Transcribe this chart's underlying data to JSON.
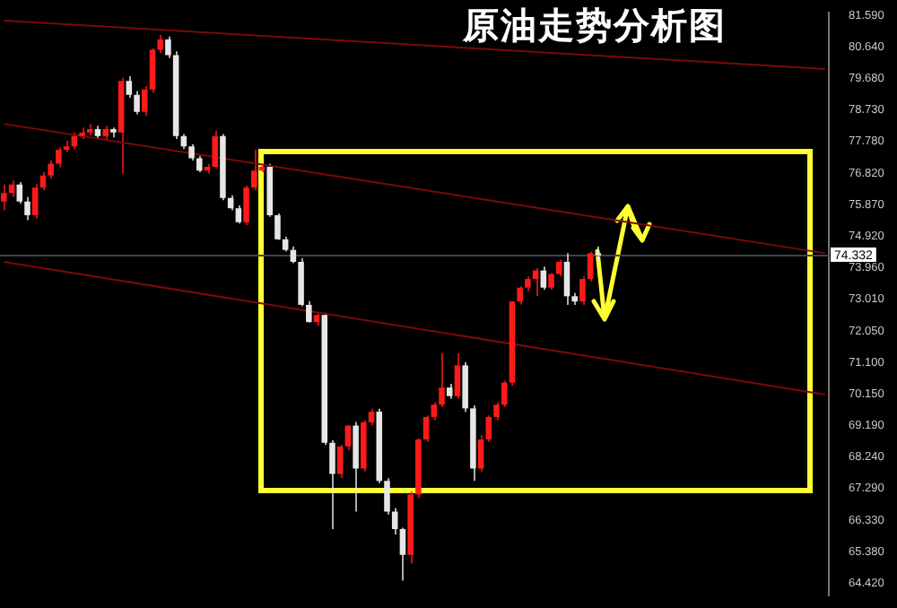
{
  "chart_data": {
    "type": "candlestick",
    "title": "原油走势分析图",
    "categories": [
      null,
      null,
      null,
      null,
      null,
      null,
      null,
      null,
      null,
      null,
      null,
      null,
      null,
      null,
      null,
      null,
      null,
      null,
      null,
      null,
      null,
      null,
      null,
      null,
      null,
      null,
      null,
      null,
      null,
      null,
      null,
      null,
      null,
      null,
      null,
      null,
      null,
      null,
      null,
      null,
      null,
      null,
      null,
      null,
      null,
      null,
      null,
      null,
      null,
      null,
      null,
      null,
      null,
      null,
      null,
      null,
      null,
      null,
      null,
      null,
      null,
      null,
      null,
      null,
      null,
      null,
      null,
      null,
      null,
      null,
      null,
      null,
      null,
      null,
      null,
      null,
      null,
      null,
      null,
      null,
      null,
      null,
      null,
      null,
      null,
      null,
      null,
      null,
      null,
      null,
      null,
      null,
      null,
      null,
      null,
      null,
      null,
      null,
      null,
      null,
      null,
      null,
      null,
      null,
      null,
      null
    ],
    "ohlc": [
      [
        75.96,
        76.48,
        75.7,
        76.22
      ],
      [
        76.22,
        76.6,
        76.1,
        76.48
      ],
      [
        76.48,
        76.55,
        75.9,
        75.96
      ],
      [
        75.96,
        76.1,
        75.4,
        75.55
      ],
      [
        75.55,
        76.5,
        75.45,
        76.38
      ],
      [
        76.38,
        76.85,
        76.3,
        76.75
      ],
      [
        76.75,
        77.2,
        76.65,
        77.11
      ],
      [
        77.11,
        77.6,
        77.0,
        77.53
      ],
      [
        77.53,
        77.8,
        77.45,
        77.63
      ],
      [
        77.63,
        78.05,
        77.55,
        77.94
      ],
      [
        77.94,
        78.2,
        77.85,
        78.05
      ],
      [
        78.05,
        78.3,
        77.95,
        78.15
      ],
      [
        78.15,
        78.25,
        77.85,
        77.94
      ],
      [
        77.94,
        78.25,
        77.8,
        78.15
      ],
      [
        78.15,
        78.2,
        77.9,
        78.05
      ],
      [
        78.05,
        79.7,
        76.8,
        79.61
      ],
      [
        79.61,
        79.75,
        79.1,
        79.19
      ],
      [
        79.19,
        79.3,
        78.6,
        78.67
      ],
      [
        78.67,
        79.45,
        78.55,
        79.35
      ],
      [
        79.35,
        80.6,
        79.25,
        80.55
      ],
      [
        80.55,
        81.0,
        80.45,
        80.86
      ],
      [
        80.86,
        80.95,
        80.3,
        80.39
      ],
      [
        80.39,
        80.5,
        77.85,
        77.94
      ],
      [
        77.94,
        78.0,
        77.55,
        77.63
      ],
      [
        77.63,
        77.7,
        77.2,
        77.27
      ],
      [
        77.27,
        77.35,
        76.85,
        76.9
      ],
      [
        76.9,
        77.1,
        76.8,
        77.01
      ],
      [
        77.01,
        78.1,
        76.95,
        77.94
      ],
      [
        77.94,
        78.0,
        76.0,
        76.07
      ],
      [
        76.07,
        76.15,
        75.7,
        75.76
      ],
      [
        75.76,
        75.85,
        75.3,
        75.34
      ],
      [
        75.34,
        76.45,
        75.25,
        76.38
      ],
      [
        76.38,
        77.53,
        76.3,
        76.9
      ],
      [
        76.9,
        77.05,
        76.85,
        77.01
      ],
      [
        77.01,
        77.1,
        75.5,
        75.55
      ],
      [
        75.55,
        75.6,
        74.8,
        74.82
      ],
      [
        74.82,
        74.9,
        74.45,
        74.5
      ],
      [
        74.5,
        74.6,
        74.1,
        74.14
      ],
      [
        74.14,
        74.25,
        72.8,
        72.84
      ],
      [
        72.84,
        72.95,
        72.3,
        72.32
      ],
      [
        72.32,
        72.6,
        72.2,
        72.53
      ],
      [
        72.53,
        72.6,
        68.6,
        68.67
      ],
      [
        68.67,
        68.75,
        66.06,
        67.73
      ],
      [
        67.73,
        68.6,
        67.6,
        68.56
      ],
      [
        68.56,
        69.2,
        68.45,
        69.19
      ],
      [
        69.19,
        69.3,
        66.59,
        67.89
      ],
      [
        67.89,
        69.35,
        67.8,
        69.29
      ],
      [
        69.29,
        69.7,
        69.2,
        69.61
      ],
      [
        69.61,
        69.7,
        67.45,
        67.52
      ],
      [
        67.52,
        67.6,
        66.5,
        66.59
      ],
      [
        66.59,
        66.7,
        65.9,
        66.06
      ],
      [
        66.06,
        66.1,
        64.5,
        65.28
      ],
      [
        65.28,
        67.2,
        65.02,
        67.11
      ],
      [
        67.11,
        68.8,
        67.0,
        68.77
      ],
      [
        68.77,
        69.5,
        68.7,
        69.45
      ],
      [
        69.45,
        69.9,
        69.35,
        69.82
      ],
      [
        69.82,
        71.38,
        69.75,
        70.34
      ],
      [
        70.34,
        70.45,
        70.0,
        70.08
      ],
      [
        70.08,
        71.38,
        70.0,
        71.01
      ],
      [
        71.01,
        71.1,
        69.6,
        69.71
      ],
      [
        69.71,
        69.8,
        67.52,
        67.89
      ],
      [
        67.89,
        68.9,
        67.8,
        68.77
      ],
      [
        68.77,
        69.5,
        68.7,
        69.45
      ],
      [
        69.45,
        69.9,
        69.35,
        69.82
      ],
      [
        69.82,
        70.55,
        69.75,
        70.49
      ],
      [
        70.49,
        72.95,
        70.4,
        72.94
      ],
      [
        72.94,
        73.4,
        72.85,
        73.36
      ],
      [
        73.36,
        73.7,
        73.25,
        73.62
      ],
      [
        73.62,
        73.95,
        73.1,
        73.88
      ],
      [
        73.88,
        74.0,
        73.3,
        73.36
      ],
      [
        73.36,
        73.8,
        73.3,
        73.77
      ],
      [
        73.77,
        74.2,
        73.7,
        74.14
      ],
      [
        74.14,
        74.4,
        72.84,
        73.1
      ],
      [
        73.1,
        73.2,
        72.84,
        72.94
      ],
      [
        72.94,
        73.7,
        72.84,
        73.62
      ],
      [
        73.62,
        74.45,
        73.55,
        74.4
      ],
      [
        74.4,
        74.6,
        74.2,
        74.33
      ],
      null,
      null,
      null,
      null,
      null,
      null,
      null,
      null,
      null,
      null,
      null,
      null,
      null,
      null,
      null,
      null,
      null,
      null,
      null,
      null,
      null,
      null,
      null,
      null,
      null,
      null,
      null,
      null,
      null
    ],
    "colors": [
      "#ff1a1a",
      "#ff1a1a",
      "#e6e6e6",
      "#e6e6e6",
      "#ff1a1a",
      "#ff1a1a",
      "#ff1a1a",
      "#ff1a1a",
      "#ff1a1a",
      "#ff1a1a",
      "#ff1a1a",
      "#ff1a1a",
      "#e6e6e6",
      "#ff1a1a",
      "#e6e6e6",
      "#ff1a1a",
      "#e6e6e6",
      "#e6e6e6",
      "#ff1a1a",
      "#ff1a1a",
      "#ff1a1a",
      "#e6e6e6",
      "#e6e6e6",
      "#e6e6e6",
      "#e6e6e6",
      "#e6e6e6",
      "#ff1a1a",
      "#ff1a1a",
      "#e6e6e6",
      "#e6e6e6",
      "#e6e6e6",
      "#ff1a1a",
      "#ff1a1a",
      "#ff1a1a",
      "#e6e6e6",
      "#e6e6e6",
      "#e6e6e6",
      "#e6e6e6",
      "#e6e6e6",
      "#e6e6e6",
      "#ff1a1a",
      "#e6e6e6",
      "#e6e6e6",
      "#ff1a1a",
      "#ff1a1a",
      "#e6e6e6",
      "#ff1a1a",
      "#ff1a1a",
      "#e6e6e6",
      "#e6e6e6",
      "#e6e6e6",
      "#e6e6e6",
      "#ff1a1a",
      "#ff1a1a",
      "#ff1a1a",
      "#ff1a1a",
      "#ff1a1a",
      "#e6e6e6",
      "#ff1a1a",
      "#e6e6e6",
      "#e6e6e6",
      "#ff1a1a",
      "#ff1a1a",
      "#ff1a1a",
      "#ff1a1a",
      "#ff1a1a",
      "#ff1a1a",
      "#ff1a1a",
      "#ff1a1a",
      "#e6e6e6",
      "#ff1a1a",
      "#ff1a1a",
      "#e6e6e6",
      "#e6e6e6",
      "#ff1a1a",
      "#ff1a1a",
      "#e6e6e6",
      null,
      null,
      null,
      null,
      null,
      null,
      null,
      null,
      null,
      null,
      null,
      null,
      null,
      null,
      null,
      null,
      null,
      null,
      null,
      null,
      null,
      null,
      null,
      null,
      null,
      null,
      null,
      null,
      null
    ],
    "series": [
      {
        "type": "line",
        "color": "#7a0a0a",
        "values": [
          81.43,
          null,
          null,
          null,
          null,
          null,
          null,
          null,
          null,
          null,
          null,
          null,
          null,
          null,
          null,
          null,
          null,
          null,
          null,
          null,
          null,
          null,
          null,
          null,
          null,
          null,
          null,
          null,
          null,
          null,
          null,
          null,
          null,
          null,
          null,
          null,
          null,
          null,
          null,
          null,
          null,
          null,
          null,
          null,
          null,
          null,
          null,
          null,
          null,
          null,
          null,
          null,
          null,
          null,
          null,
          null,
          null,
          null,
          null,
          null,
          null,
          null,
          null,
          null,
          null,
          null,
          null,
          null,
          null,
          null,
          null,
          null,
          null,
          null,
          null,
          null,
          null,
          null,
          null,
          null,
          null,
          null,
          null,
          null,
          null,
          null,
          null,
          null,
          null,
          null,
          null,
          null,
          null,
          null,
          null,
          null,
          null,
          null,
          null,
          null,
          null,
          null,
          null,
          null,
          null,
          79.97
        ]
      },
      {
        "type": "line",
        "color": "#7a0a0a",
        "values": [
          78.31,
          null,
          null,
          null,
          null,
          null,
          null,
          null,
          null,
          null,
          null,
          null,
          null,
          null,
          null,
          null,
          null,
          null,
          null,
          null,
          null,
          null,
          null,
          null,
          null,
          null,
          null,
          null,
          null,
          null,
          null,
          null,
          null,
          null,
          null,
          null,
          null,
          null,
          null,
          null,
          null,
          null,
          null,
          null,
          null,
          null,
          null,
          null,
          null,
          null,
          null,
          null,
          null,
          null,
          null,
          null,
          null,
          null,
          null,
          null,
          null,
          null,
          null,
          null,
          null,
          null,
          null,
          null,
          null,
          null,
          null,
          null,
          null,
          null,
          null,
          null,
          null,
          null,
          null,
          null,
          null,
          null,
          null,
          null,
          null,
          null,
          null,
          null,
          null,
          null,
          null,
          null,
          null,
          null,
          null,
          null,
          null,
          null,
          null,
          null,
          null,
          null,
          null,
          null,
          null,
          74.4
        ]
      },
      {
        "type": "line",
        "color": "#7a0a0a",
        "values": [
          74.14,
          null,
          null,
          null,
          null,
          null,
          null,
          null,
          null,
          null,
          null,
          null,
          null,
          null,
          null,
          null,
          null,
          null,
          null,
          null,
          null,
          null,
          null,
          null,
          null,
          null,
          null,
          null,
          null,
          null,
          null,
          null,
          null,
          null,
          null,
          null,
          null,
          null,
          null,
          null,
          null,
          null,
          null,
          null,
          null,
          null,
          null,
          null,
          null,
          null,
          null,
          null,
          null,
          null,
          null,
          null,
          null,
          null,
          null,
          null,
          null,
          null,
          null,
          null,
          null,
          null,
          null,
          null,
          null,
          null,
          null,
          null,
          null,
          null,
          null,
          null,
          null,
          null,
          null,
          null,
          null,
          null,
          null,
          null,
          null,
          null,
          null,
          null,
          null,
          null,
          null,
          null,
          null,
          null,
          null,
          null,
          null,
          null,
          null,
          null,
          null,
          null,
          null,
          null,
          null,
          70.13
        ]
      }
    ],
    "ref_lines": [
      {
        "axis": "y",
        "value": 74.332,
        "label": "74.332",
        "color": "#3a4550"
      }
    ],
    "ylim": [
      64.05,
      81.68
    ],
    "yticks": [
      {
        "value": 81.59,
        "label": "81.590"
      },
      {
        "value": 80.64,
        "label": "80.640"
      },
      {
        "value": 79.68,
        "label": "79.680"
      },
      {
        "value": 78.73,
        "label": "78.730"
      },
      {
        "value": 77.78,
        "label": "77.780"
      },
      {
        "value": 76.82,
        "label": "76.820"
      },
      {
        "value": 75.87,
        "label": "75.870"
      },
      {
        "value": 74.92,
        "label": "74.920"
      },
      {
        "value": 73.96,
        "label": "73.960"
      },
      {
        "value": 73.01,
        "label": "73.010"
      },
      {
        "value": 72.05,
        "label": "72.050"
      },
      {
        "value": 71.1,
        "label": "71.100"
      },
      {
        "value": 70.15,
        "label": "70.150"
      },
      {
        "value": 69.19,
        "label": "69.190"
      },
      {
        "value": 68.24,
        "label": "68.240"
      },
      {
        "value": 67.29,
        "label": "67.290"
      },
      {
        "value": 66.33,
        "label": "66.330"
      },
      {
        "value": 65.38,
        "label": "65.380"
      },
      {
        "value": 64.42,
        "label": "64.420"
      }
    ],
    "tick_labels": "y",
    "grid": false,
    "legend": false
  }
}
